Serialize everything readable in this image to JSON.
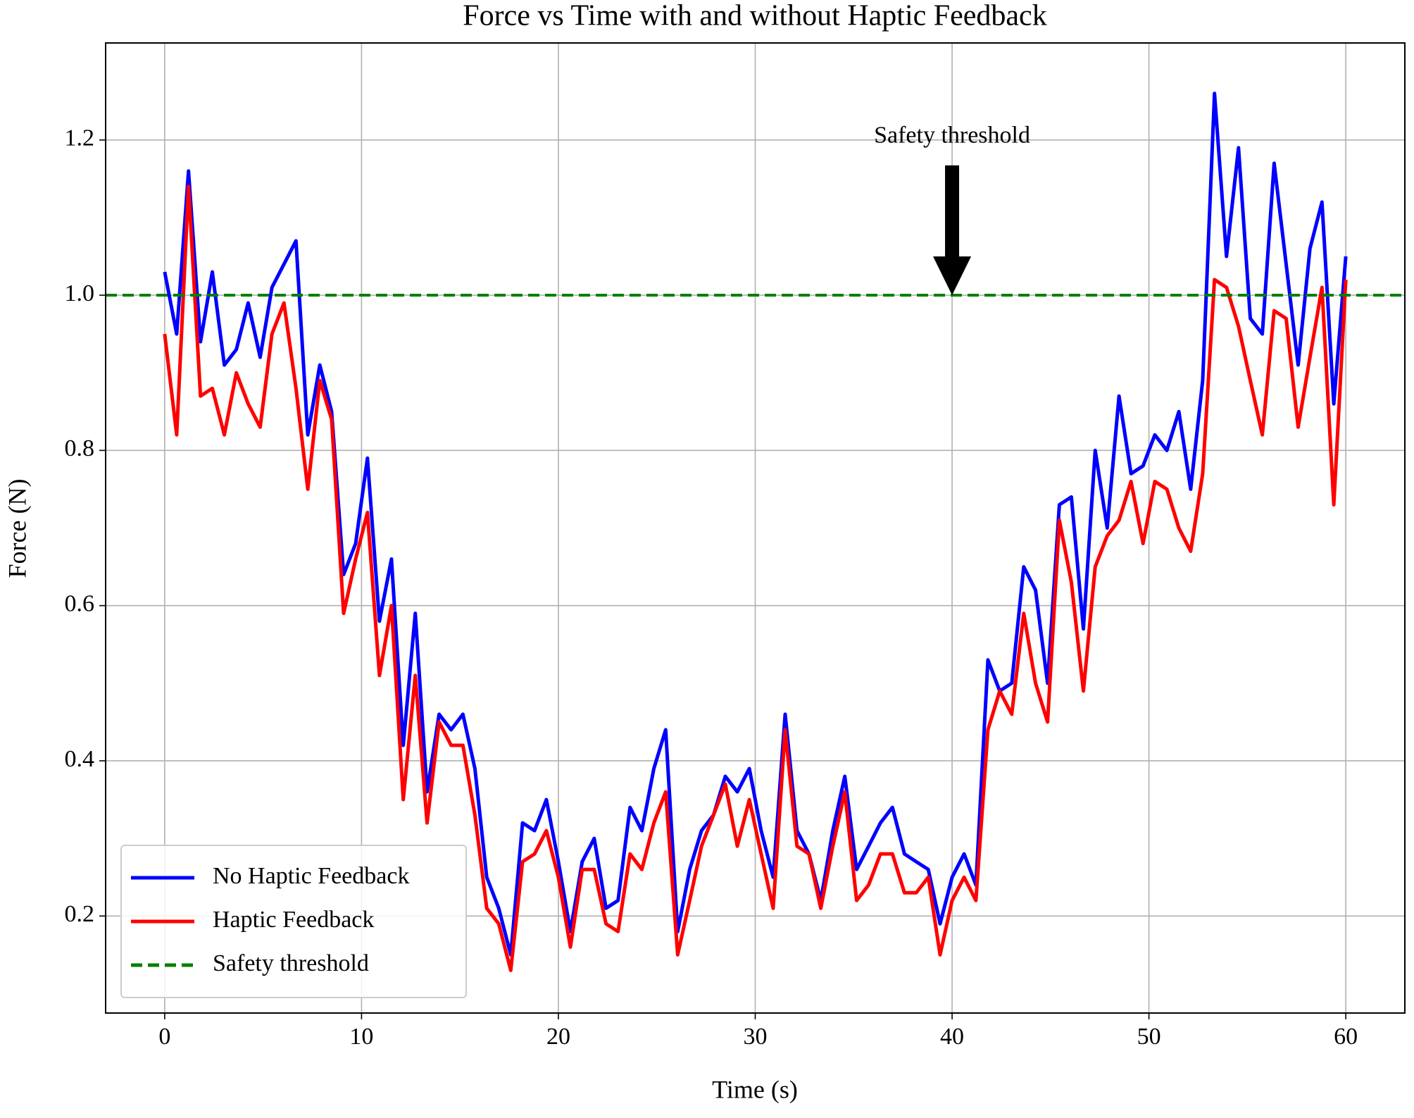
{
  "chart_data": {
    "type": "line",
    "title": "Force vs Time with and without Haptic Feedback",
    "x_label": "Time (s)",
    "y_label": "Force (N)",
    "x": [
      0,
      0.61,
      1.21,
      1.82,
      2.42,
      3.03,
      3.64,
      4.24,
      4.85,
      5.45,
      6.06,
      6.67,
      7.27,
      7.88,
      8.48,
      9.09,
      9.7,
      10.3,
      10.91,
      11.52,
      12.12,
      12.73,
      13.33,
      13.94,
      14.55,
      15.15,
      15.76,
      16.36,
      16.97,
      17.58,
      18.18,
      18.79,
      19.39,
      20,
      20.61,
      21.21,
      21.82,
      22.42,
      23.03,
      23.64,
      24.24,
      24.85,
      25.45,
      26.06,
      26.67,
      27.27,
      27.88,
      28.48,
      29.09,
      29.7,
      30.3,
      30.91,
      31.52,
      32.12,
      32.73,
      33.33,
      33.94,
      34.55,
      35.15,
      35.76,
      36.36,
      36.97,
      37.58,
      38.18,
      38.79,
      39.39,
      40,
      40.61,
      41.21,
      41.82,
      42.42,
      43.03,
      43.64,
      44.24,
      44.85,
      45.45,
      46.06,
      46.67,
      47.27,
      47.88,
      48.48,
      49.09,
      49.7,
      50.3,
      50.91,
      51.52,
      52.12,
      52.73,
      53.33,
      53.94,
      54.55,
      55.15,
      55.76,
      56.36,
      56.97,
      57.58,
      58.18,
      58.79,
      59.39,
      60
    ],
    "series": [
      {
        "name": "No Haptic Feedback",
        "color": "#0000ff",
        "values": [
          1.03,
          0.95,
          1.16,
          0.94,
          1.03,
          0.91,
          0.93,
          0.99,
          0.92,
          1.01,
          1.04,
          1.07,
          0.82,
          0.91,
          0.85,
          0.64,
          0.68,
          0.79,
          0.58,
          0.66,
          0.42,
          0.59,
          0.36,
          0.46,
          0.44,
          0.46,
          0.39,
          0.25,
          0.21,
          0.15,
          0.32,
          0.31,
          0.35,
          0.27,
          0.18,
          0.27,
          0.3,
          0.21,
          0.22,
          0.34,
          0.31,
          0.39,
          0.44,
          0.18,
          0.26,
          0.31,
          0.33,
          0.38,
          0.36,
          0.39,
          0.31,
          0.25,
          0.46,
          0.31,
          0.28,
          0.22,
          0.31,
          0.38,
          0.26,
          0.29,
          0.32,
          0.34,
          0.28,
          0.27,
          0.26,
          0.19,
          0.25,
          0.28,
          0.24,
          0.53,
          0.49,
          0.5,
          0.65,
          0.62,
          0.5,
          0.73,
          0.74,
          0.57,
          0.8,
          0.7,
          0.87,
          0.77,
          0.78,
          0.82,
          0.8,
          0.85,
          0.75,
          0.89,
          1.26,
          1.05,
          1.19,
          0.97,
          0.95,
          1.17,
          1.04,
          0.91,
          1.06,
          1.12,
          0.86,
          1.05
        ]
      },
      {
        "name": "Haptic Feedback",
        "color": "#ff0000",
        "values": [
          0.95,
          0.82,
          1.14,
          0.87,
          0.88,
          0.82,
          0.9,
          0.86,
          0.83,
          0.95,
          0.99,
          0.88,
          0.75,
          0.89,
          0.84,
          0.59,
          0.66,
          0.72,
          0.51,
          0.6,
          0.35,
          0.51,
          0.32,
          0.45,
          0.42,
          0.42,
          0.33,
          0.21,
          0.19,
          0.13,
          0.27,
          0.28,
          0.31,
          0.25,
          0.16,
          0.26,
          0.26,
          0.19,
          0.18,
          0.28,
          0.26,
          0.32,
          0.36,
          0.15,
          0.22,
          0.29,
          0.33,
          0.37,
          0.29,
          0.35,
          0.28,
          0.21,
          0.44,
          0.29,
          0.28,
          0.21,
          0.29,
          0.36,
          0.22,
          0.24,
          0.28,
          0.28,
          0.23,
          0.23,
          0.25,
          0.15,
          0.22,
          0.25,
          0.22,
          0.44,
          0.49,
          0.46,
          0.59,
          0.5,
          0.45,
          0.71,
          0.63,
          0.49,
          0.65,
          0.69,
          0.71,
          0.76,
          0.68,
          0.76,
          0.75,
          0.7,
          0.67,
          0.77,
          1.02,
          1.01,
          0.96,
          0.89,
          0.82,
          0.98,
          0.97,
          0.83,
          0.92,
          1.01,
          0.73,
          1.02
        ]
      }
    ],
    "hlines": [
      {
        "name": "Safety threshold",
        "y": 1,
        "color": "#008000",
        "dashed": true
      }
    ],
    "annotations": [
      {
        "text": "Safety threshold",
        "x": 40,
        "y": 1,
        "text_y": 1.2
      }
    ],
    "xlim": [
      -3,
      63
    ],
    "ylim": [
      0.075,
      1.325
    ],
    "xticks": [
      0,
      10,
      20,
      30,
      40,
      50,
      60
    ],
    "yticks": [
      0.2,
      0.4,
      0.6,
      0.8,
      {
        "value": 1,
        "label": "1.0"
      },
      1.2
    ],
    "grid": true,
    "legend": "lower left"
  }
}
